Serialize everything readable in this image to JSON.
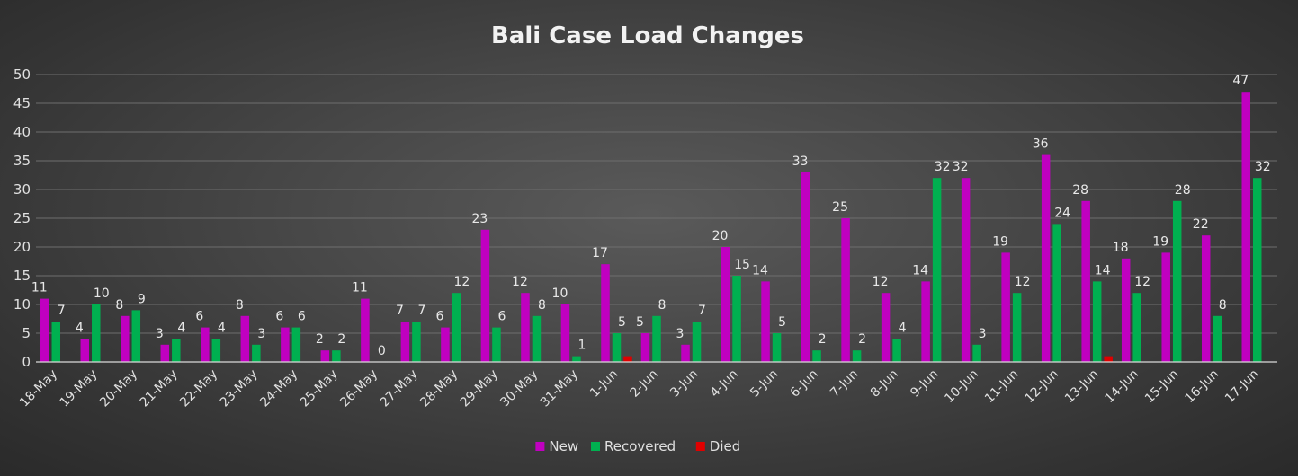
{
  "chart_data": {
    "type": "bar",
    "title": "Bali Case Load Changes",
    "categories": [
      "18-May",
      "19-May",
      "20-May",
      "21-May",
      "22-May",
      "23-May",
      "24-May",
      "25-May",
      "26-May",
      "27-May",
      "28-May",
      "29-May",
      "30-May",
      "31-May",
      "1-Jun",
      "2-Jun",
      "3-Jun",
      "4-Jun",
      "5-Jun",
      "6-Jun",
      "7-Jun",
      "8-Jun",
      "9-Jun",
      "10-Jun",
      "11-Jun",
      "12-Jun",
      "13-Jun",
      "14-Jun",
      "15-Jun",
      "16-Jun",
      "17-Jun"
    ],
    "series": [
      {
        "name": "New",
        "color": "#c000c0",
        "values": [
          11,
          4,
          8,
          3,
          6,
          8,
          6,
          2,
          11,
          7,
          6,
          23,
          12,
          10,
          17,
          5,
          3,
          20,
          14,
          33,
          25,
          12,
          14,
          32,
          19,
          36,
          28,
          18,
          19,
          22,
          47
        ],
        "labels": [
          "11",
          "4",
          "8",
          "3",
          "6",
          "8",
          "6",
          "2",
          "11",
          "7",
          "6",
          "23",
          "12",
          "10",
          "17",
          "5",
          "3",
          "20",
          "14",
          "33",
          "25",
          "12",
          "14",
          "32",
          "19",
          "36",
          "28",
          "18",
          "19",
          "22",
          "47"
        ]
      },
      {
        "name": "Recovered",
        "color": "#00b050",
        "values": [
          7,
          10,
          9,
          4,
          4,
          3,
          6,
          2,
          0,
          7,
          12,
          6,
          8,
          1,
          5,
          8,
          7,
          15,
          5,
          2,
          2,
          4,
          32,
          3,
          12,
          24,
          14,
          12,
          28,
          8,
          32
        ],
        "labels": [
          "7",
          "10",
          "9",
          "4",
          "4",
          "3",
          "6",
          "2",
          "0",
          "7",
          "12",
          "6",
          "8",
          "1",
          "5",
          "8",
          "7",
          "15",
          "5",
          "2",
          "2",
          "4",
          "32",
          "3",
          "12",
          "24",
          "14",
          "12",
          "28",
          "8",
          "32"
        ]
      },
      {
        "name": "Died",
        "color": "#e00000",
        "values": [
          0,
          0,
          0,
          0,
          0,
          0,
          0,
          0,
          0,
          0,
          0,
          0,
          0,
          0,
          1,
          0,
          0,
          0,
          0,
          0,
          0,
          0,
          0,
          0,
          0,
          0,
          1,
          0,
          0,
          0,
          0
        ],
        "labels": []
      }
    ],
    "ylim": [
      0,
      50
    ],
    "yticks": [
      "0",
      "5",
      "10",
      "15",
      "20",
      "25",
      "30",
      "35",
      "40",
      "45",
      "50"
    ],
    "grid": true,
    "legend_position": "bottom"
  }
}
